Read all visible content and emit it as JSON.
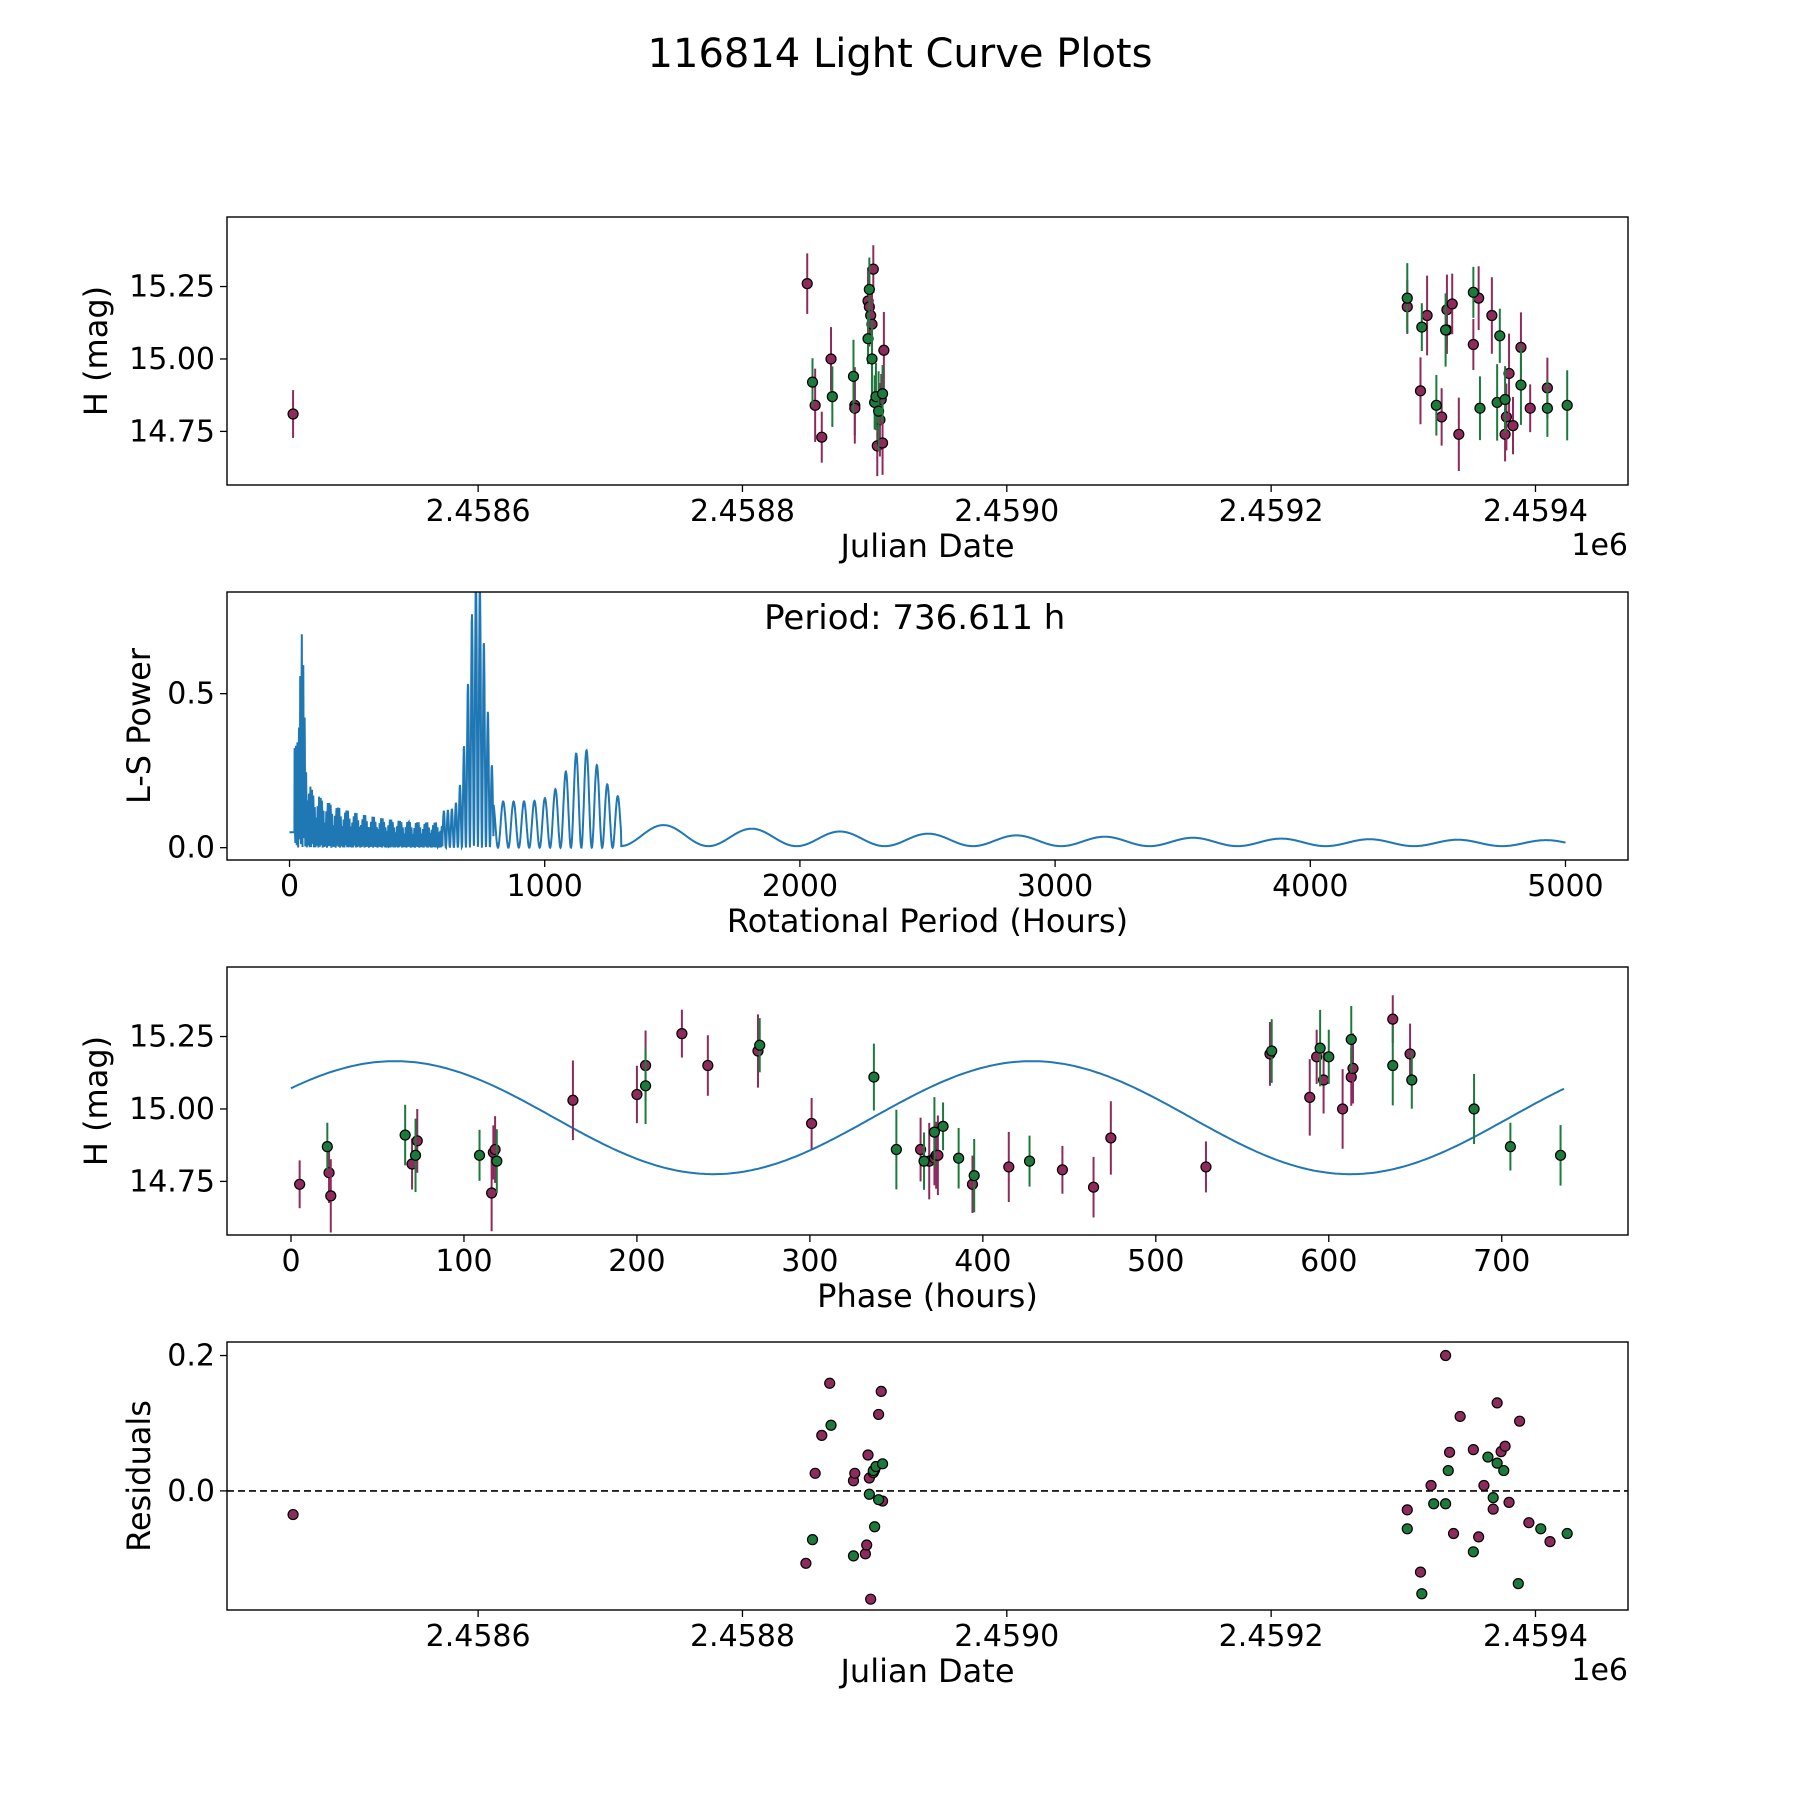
{
  "figure_title": "116814 Light Curve Plots",
  "colors": {
    "magenta": "#8e2b5c",
    "green": "#1b7a3c",
    "line": "#1f77b4",
    "axis": "#000000"
  },
  "chart_data": [
    {
      "id": "lightcurve",
      "type": "scatter",
      "title": "",
      "xlabel": "Julian Date",
      "ylabel": "H (mag)",
      "offset_label": "1e6",
      "xlim": [
        2.45841,
        2.45947
      ],
      "ylim": [
        14.565,
        15.49
      ],
      "xticks": [
        2.4586,
        2.4588,
        2.459,
        2.4592,
        2.4594
      ],
      "xtick_labels": [
        "2.4586",
        "2.4588",
        "2.4590",
        "2.4592",
        "2.4594"
      ],
      "yticks": [
        14.75,
        15.0,
        15.25
      ],
      "ytick_labels": [
        "14.75",
        "15.00",
        "15.25"
      ],
      "error_bar": 0.11,
      "series": [
        {
          "name": "magenta",
          "color": "magenta",
          "x": [
            2.45846,
            2.458849,
            2.458855,
            2.45886,
            2.458867,
            2.458885,
            2.458885,
            2.458895,
            2.458896,
            2.458897,
            2.458898,
            2.458899,
            2.458902,
            2.458904,
            2.458905,
            2.458906,
            2.458907,
            2.459303,
            2.459313,
            2.459318,
            2.459329,
            2.459333,
            2.459333,
            2.459337,
            2.459342,
            2.459353,
            2.459357,
            2.459367,
            2.459377,
            2.459378,
            2.45938,
            2.459383,
            2.459389,
            2.459396,
            2.459409
          ],
          "y": [
            14.81,
            15.26,
            14.84,
            14.73,
            15.0,
            14.84,
            14.83,
            15.2,
            15.18,
            15.15,
            15.12,
            15.31,
            14.7,
            14.79,
            14.86,
            14.71,
            15.03,
            15.18,
            14.89,
            15.15,
            14.8,
            15.17,
            15.1,
            15.19,
            14.74,
            15.05,
            15.21,
            15.15,
            14.74,
            14.8,
            14.95,
            14.77,
            15.04,
            14.83,
            14.9
          ]
        },
        {
          "name": "green",
          "color": "green",
          "x": [
            2.458853,
            2.458868,
            2.458884,
            2.458895,
            2.458896,
            2.458898,
            2.4589,
            2.458901,
            2.458903,
            2.458906,
            2.459303,
            2.459314,
            2.459325,
            2.459332,
            2.459353,
            2.459358,
            2.459371,
            2.459373,
            2.459377,
            2.459389,
            2.459409,
            2.459424
          ],
          "y": [
            14.92,
            14.87,
            14.94,
            15.07,
            15.24,
            15.0,
            14.85,
            14.87,
            14.82,
            14.88,
            15.21,
            15.11,
            14.84,
            15.1,
            15.23,
            14.83,
            14.85,
            15.08,
            14.86,
            14.91,
            14.83,
            14.84
          ]
        }
      ]
    },
    {
      "id": "periodogram",
      "type": "line",
      "title": "",
      "xlabel": "Rotational Period (Hours)",
      "ylabel": "L-S Power",
      "annotation": "Period: 736.611 h",
      "xlim": [
        -245,
        5245
      ],
      "ylim": [
        -0.04,
        0.83
      ],
      "xticks": [
        0,
        1000,
        2000,
        3000,
        4000,
        5000
      ],
      "xtick_labels": [
        "0",
        "1000",
        "2000",
        "3000",
        "4000",
        "5000"
      ],
      "yticks": [
        0.0,
        0.5
      ],
      "ytick_labels": [
        "0.0",
        "0.5"
      ],
      "x_range": [
        0,
        5000
      ],
      "series": [
        {
          "name": "L-S Power",
          "color": "line"
        }
      ]
    },
    {
      "id": "phase",
      "type": "scatter",
      "title": "",
      "xlabel": "Phase (hours)",
      "ylabel": "H (mag)",
      "xlim": [
        -37,
        773
      ],
      "ylim": [
        14.565,
        15.49
      ],
      "xticks": [
        0,
        100,
        200,
        300,
        400,
        500,
        600,
        700
      ],
      "xtick_labels": [
        "0",
        "100",
        "200",
        "300",
        "400",
        "500",
        "600",
        "700"
      ],
      "yticks": [
        14.75,
        15.0,
        15.25
      ],
      "ytick_labels": [
        "14.75",
        "15.00",
        "15.25"
      ],
      "error_bar": 0.11,
      "model": {
        "type": "sinusoid",
        "mean": 14.97,
        "amplitude": 0.195,
        "period": 368.3,
        "phase_shift": 60
      },
      "series": [
        {
          "name": "magenta",
          "color": "magenta",
          "x": [
            5,
            22,
            23,
            70,
            73,
            116,
            117,
            118,
            163,
            200,
            205,
            226,
            241,
            270,
            301,
            364,
            369,
            372,
            373,
            374,
            394,
            415,
            446,
            464,
            474,
            529,
            566,
            589,
            593,
            597,
            608,
            613,
            614,
            637,
            647
          ],
          "y": [
            14.74,
            14.78,
            14.7,
            14.81,
            14.89,
            14.71,
            14.85,
            14.86,
            15.03,
            15.05,
            15.15,
            15.26,
            15.15,
            15.2,
            14.95,
            14.86,
            14.82,
            14.83,
            14.84,
            14.84,
            14.74,
            14.8,
            14.79,
            14.73,
            14.9,
            14.8,
            15.19,
            15.04,
            15.18,
            15.1,
            15.0,
            15.11,
            15.14,
            15.31,
            15.19
          ]
        },
        {
          "name": "green",
          "color": "green",
          "x": [
            21,
            66,
            72,
            109,
            119,
            205,
            271,
            337,
            350,
            366,
            372,
            377,
            386,
            395,
            427,
            567,
            595,
            600,
            613,
            637,
            648,
            684,
            705,
            734
          ],
          "y": [
            14.87,
            14.91,
            14.84,
            14.84,
            14.82,
            15.08,
            15.22,
            15.11,
            14.86,
            14.82,
            14.92,
            14.94,
            14.83,
            14.77,
            14.82,
            15.2,
            15.21,
            15.18,
            15.24,
            15.15,
            15.1,
            15.0,
            14.87,
            14.84
          ]
        }
      ]
    },
    {
      "id": "residuals",
      "type": "scatter",
      "title": "",
      "xlabel": "Julian Date",
      "ylabel": "Residuals",
      "offset_label": "1e6",
      "xlim": [
        2.45841,
        2.45947
      ],
      "ylim": [
        -0.176,
        0.22
      ],
      "xticks": [
        2.4586,
        2.4588,
        2.459,
        2.4592,
        2.4594
      ],
      "xtick_labels": [
        "2.4586",
        "2.4588",
        "2.4590",
        "2.4592",
        "2.4594"
      ],
      "yticks": [
        0.0,
        0.2
      ],
      "ytick_labels": [
        "0.0",
        "0.2"
      ],
      "reference_line": 0.0,
      "series": [
        {
          "name": "magenta",
          "color": "magenta",
          "x": [
            2.45846,
            2.458848,
            2.458855,
            2.45886,
            2.458866,
            2.458884,
            2.458885,
            2.458893,
            2.458894,
            2.458895,
            2.458896,
            2.458897,
            2.458899,
            2.4589,
            2.458903,
            2.458905,
            2.458906,
            2.459303,
            2.459313,
            2.459321,
            2.459332,
            2.459335,
            2.459338,
            2.459343,
            2.459353,
            2.459357,
            2.459361,
            2.459368,
            2.459371,
            2.459374,
            2.459377,
            2.45938,
            2.459388,
            2.459395,
            2.459411
          ],
          "y": [
            -0.035,
            -0.107,
            0.026,
            0.082,
            0.159,
            0.015,
            0.026,
            -0.093,
            -0.08,
            0.053,
            0.019,
            -0.16,
            0.027,
            0.031,
            0.113,
            0.147,
            -0.015,
            -0.028,
            -0.12,
            0.008,
            0.2,
            0.057,
            -0.063,
            0.11,
            0.061,
            -0.068,
            0.008,
            -0.027,
            0.13,
            0.058,
            0.066,
            -0.017,
            0.103,
            -0.047,
            -0.075
          ]
        },
        {
          "name": "green",
          "color": "green",
          "x": [
            2.458853,
            2.458867,
            2.458884,
            2.458896,
            2.458899,
            2.4589,
            2.458901,
            2.458903,
            2.458906,
            2.459303,
            2.459314,
            2.459323,
            2.459332,
            2.459334,
            2.459353,
            2.459364,
            2.459368,
            2.459371,
            2.459376,
            2.459387,
            2.459404,
            2.459424
          ],
          "y": [
            -0.072,
            0.097,
            -0.096,
            -0.005,
            0.03,
            -0.053,
            0.036,
            -0.013,
            0.04,
            -0.056,
            -0.152,
            -0.019,
            -0.019,
            0.03,
            -0.09,
            0.05,
            -0.01,
            0.041,
            0.03,
            -0.137,
            -0.056,
            -0.063
          ]
        }
      ]
    }
  ]
}
